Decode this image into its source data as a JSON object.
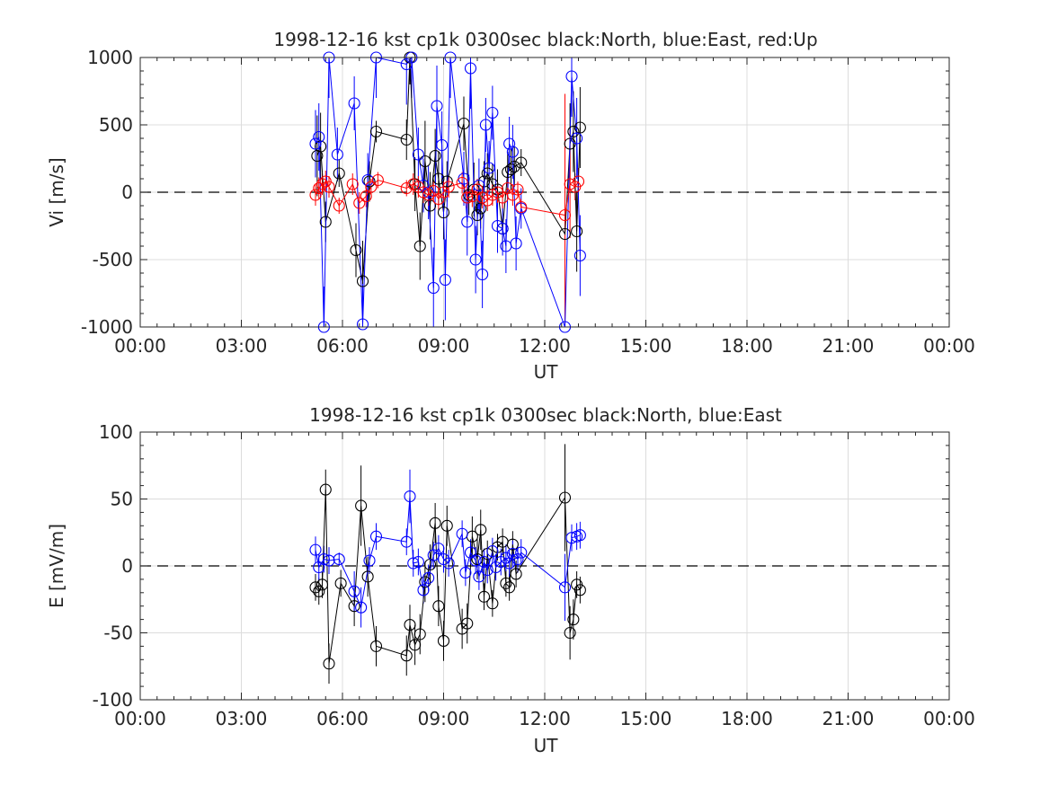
{
  "chart_data": [
    {
      "type": "line",
      "title": "1998-12-16 kst cp1k 0300sec black:North, blue:East, red:Up",
      "xlabel": "UT",
      "ylabel": "Vi [m/s]",
      "xlim_hours": [
        0,
        24
      ],
      "ylim": [
        -1000,
        1000
      ],
      "grid": true,
      "zero_line": "dashed",
      "x_tick_labels": [
        "00:00",
        "03:00",
        "06:00",
        "09:00",
        "12:00",
        "15:00",
        "18:00",
        "21:00",
        "00:00"
      ],
      "y_tick_labels": [
        "-1000",
        "-500",
        "0",
        "500",
        "1000"
      ],
      "series": [
        {
          "name": "North",
          "color": "#000000",
          "x": [
            5.25,
            5.35,
            5.5,
            5.9,
            6.4,
            6.6,
            6.8,
            7.0,
            7.9,
            8.0,
            8.15,
            8.3,
            8.45,
            8.6,
            8.75,
            8.85,
            9.0,
            9.1,
            9.6,
            9.75,
            9.9,
            10.0,
            10.1,
            10.2,
            10.3,
            10.45,
            10.6,
            10.75,
            10.9,
            11.0,
            11.1,
            11.3,
            12.6,
            12.75,
            12.85,
            12.95,
            13.05
          ],
          "y": [
            270,
            340,
            -220,
            140,
            -430,
            -660,
            80,
            450,
            390,
            1000,
            60,
            -400,
            230,
            -100,
            270,
            100,
            -150,
            80,
            510,
            -20,
            20,
            -170,
            -120,
            80,
            140,
            60,
            20,
            -270,
            150,
            170,
            190,
            220,
            -310,
            360,
            450,
            -290,
            480
          ],
          "err": [
            300,
            250,
            150,
            100,
            200,
            300,
            150,
            80,
            150,
            200,
            200,
            250,
            300,
            250,
            200,
            200,
            200,
            150,
            200,
            150,
            200,
            150,
            150,
            150,
            150,
            150,
            150,
            150,
            150,
            150,
            150,
            100,
            200,
            300,
            300,
            300,
            300
          ]
        },
        {
          "name": "East",
          "color": "#0000ff",
          "x": [
            5.2,
            5.3,
            5.45,
            5.6,
            5.85,
            6.35,
            6.6,
            6.75,
            7.0,
            7.9,
            8.05,
            8.25,
            8.4,
            8.55,
            8.7,
            8.8,
            8.95,
            9.05,
            9.2,
            9.6,
            9.7,
            9.8,
            9.95,
            10.05,
            10.15,
            10.25,
            10.35,
            10.45,
            10.6,
            10.75,
            10.85,
            10.95,
            11.05,
            11.15,
            11.3,
            12.6,
            12.8,
            12.95,
            13.05
          ],
          "y": [
            360,
            410,
            -1000,
            1000,
            280,
            660,
            -980,
            90,
            1000,
            950,
            1000,
            280,
            50,
            0,
            -710,
            640,
            350,
            -650,
            1000,
            100,
            -220,
            920,
            -500,
            50,
            -610,
            500,
            180,
            590,
            -250,
            -270,
            -400,
            360,
            300,
            -380,
            -120,
            -1000,
            860,
            400,
            -470
          ],
          "err": [
            250,
            250,
            300,
            300,
            200,
            200,
            300,
            200,
            300,
            300,
            300,
            200,
            200,
            200,
            300,
            300,
            250,
            300,
            300,
            200,
            250,
            300,
            250,
            200,
            250,
            200,
            200,
            200,
            200,
            200,
            200,
            200,
            200,
            200,
            150,
            300,
            300,
            300,
            300
          ]
        },
        {
          "name": "Up",
          "color": "#ff0000",
          "x": [
            5.2,
            5.3,
            5.4,
            5.5,
            5.6,
            5.9,
            6.3,
            6.5,
            6.7,
            6.85,
            7.05,
            7.9,
            8.1,
            8.25,
            8.4,
            8.55,
            8.7,
            8.85,
            9.0,
            9.15,
            9.55,
            9.7,
            9.85,
            10.0,
            10.15,
            10.3,
            10.45,
            10.6,
            10.75,
            10.9,
            11.05,
            11.2,
            11.3,
            12.6,
            12.75,
            12.9,
            13.0
          ],
          "y": [
            -20,
            30,
            60,
            80,
            40,
            -100,
            60,
            -80,
            -30,
            40,
            90,
            30,
            60,
            40,
            0,
            -20,
            10,
            -50,
            0,
            40,
            70,
            -40,
            -30,
            20,
            -40,
            -60,
            -20,
            0,
            -40,
            30,
            -20,
            20,
            -110,
            -170,
            60,
            40,
            80
          ],
          "err": [
            80,
            80,
            80,
            80,
            80,
            60,
            80,
            80,
            80,
            60,
            60,
            60,
            80,
            80,
            80,
            80,
            80,
            80,
            80,
            80,
            80,
            80,
            80,
            80,
            80,
            80,
            80,
            80,
            80,
            80,
            80,
            60,
            60,
            900,
            400,
            100,
            100
          ]
        }
      ]
    },
    {
      "type": "line",
      "title": "1998-12-16 kst cp1k 0300sec black:North, blue:East",
      "xlabel": "UT",
      "ylabel": "E [mV/m]",
      "xlim_hours": [
        0,
        24
      ],
      "ylim": [
        -100,
        100
      ],
      "grid": true,
      "zero_line": "dashed",
      "x_tick_labels": [
        "00:00",
        "03:00",
        "06:00",
        "09:00",
        "12:00",
        "15:00",
        "18:00",
        "21:00",
        "00:00"
      ],
      "y_tick_labels": [
        "-100",
        "-50",
        "0",
        "50",
        "100"
      ],
      "series": [
        {
          "name": "North",
          "color": "#000000",
          "x": [
            5.2,
            5.3,
            5.4,
            5.5,
            5.6,
            5.95,
            6.35,
            6.55,
            6.75,
            7.0,
            7.9,
            8.0,
            8.15,
            8.3,
            8.45,
            8.6,
            8.75,
            8.85,
            9.0,
            9.1,
            9.55,
            9.7,
            9.85,
            10.0,
            10.1,
            10.2,
            10.3,
            10.45,
            10.6,
            10.75,
            10.85,
            10.95,
            11.05,
            11.15,
            12.6,
            12.75,
            12.85,
            12.95,
            13.05
          ],
          "y": [
            -16,
            -19,
            -14,
            57,
            -73,
            -13,
            -30,
            45,
            -8,
            -60,
            -67,
            -44,
            -59,
            -51,
            -12,
            1,
            32,
            -30,
            -56,
            30,
            -47,
            -43,
            22,
            5,
            27,
            -23,
            9,
            -28,
            14,
            18,
            -13,
            -16,
            16,
            -6,
            51,
            -50,
            -40,
            -14,
            -18
          ],
          "err": [
            10,
            10,
            10,
            15,
            15,
            10,
            15,
            30,
            15,
            15,
            15,
            15,
            15,
            15,
            15,
            15,
            15,
            15,
            15,
            15,
            15,
            15,
            15,
            15,
            15,
            10,
            10,
            10,
            10,
            10,
            10,
            10,
            10,
            10,
            40,
            20,
            15,
            10,
            10
          ]
        },
        {
          "name": "East",
          "color": "#0000ff",
          "x": [
            5.2,
            5.3,
            5.45,
            5.6,
            5.9,
            6.35,
            6.55,
            6.8,
            7.0,
            7.9,
            8.0,
            8.1,
            8.25,
            8.4,
            8.55,
            8.7,
            8.85,
            9.0,
            9.15,
            9.55,
            9.65,
            9.8,
            9.95,
            10.05,
            10.2,
            10.3,
            10.45,
            10.55,
            10.7,
            10.85,
            10.95,
            11.05,
            11.2,
            11.3,
            12.6,
            12.8,
            12.95,
            13.05
          ],
          "y": [
            12,
            -1,
            5,
            4,
            5,
            -19,
            -31,
            4,
            22,
            18,
            52,
            2,
            3,
            -18,
            -9,
            8,
            13,
            5,
            2,
            24,
            -5,
            10,
            4,
            -8,
            3,
            -3,
            11,
            -1,
            3,
            6,
            2,
            9,
            5,
            10,
            -16,
            21,
            22,
            23
          ],
          "err": [
            10,
            10,
            10,
            10,
            5,
            15,
            15,
            10,
            10,
            10,
            20,
            10,
            10,
            10,
            10,
            10,
            10,
            10,
            10,
            10,
            10,
            10,
            10,
            10,
            10,
            10,
            10,
            10,
            10,
            10,
            10,
            10,
            10,
            10,
            25,
            10,
            10,
            10
          ]
        }
      ]
    }
  ]
}
